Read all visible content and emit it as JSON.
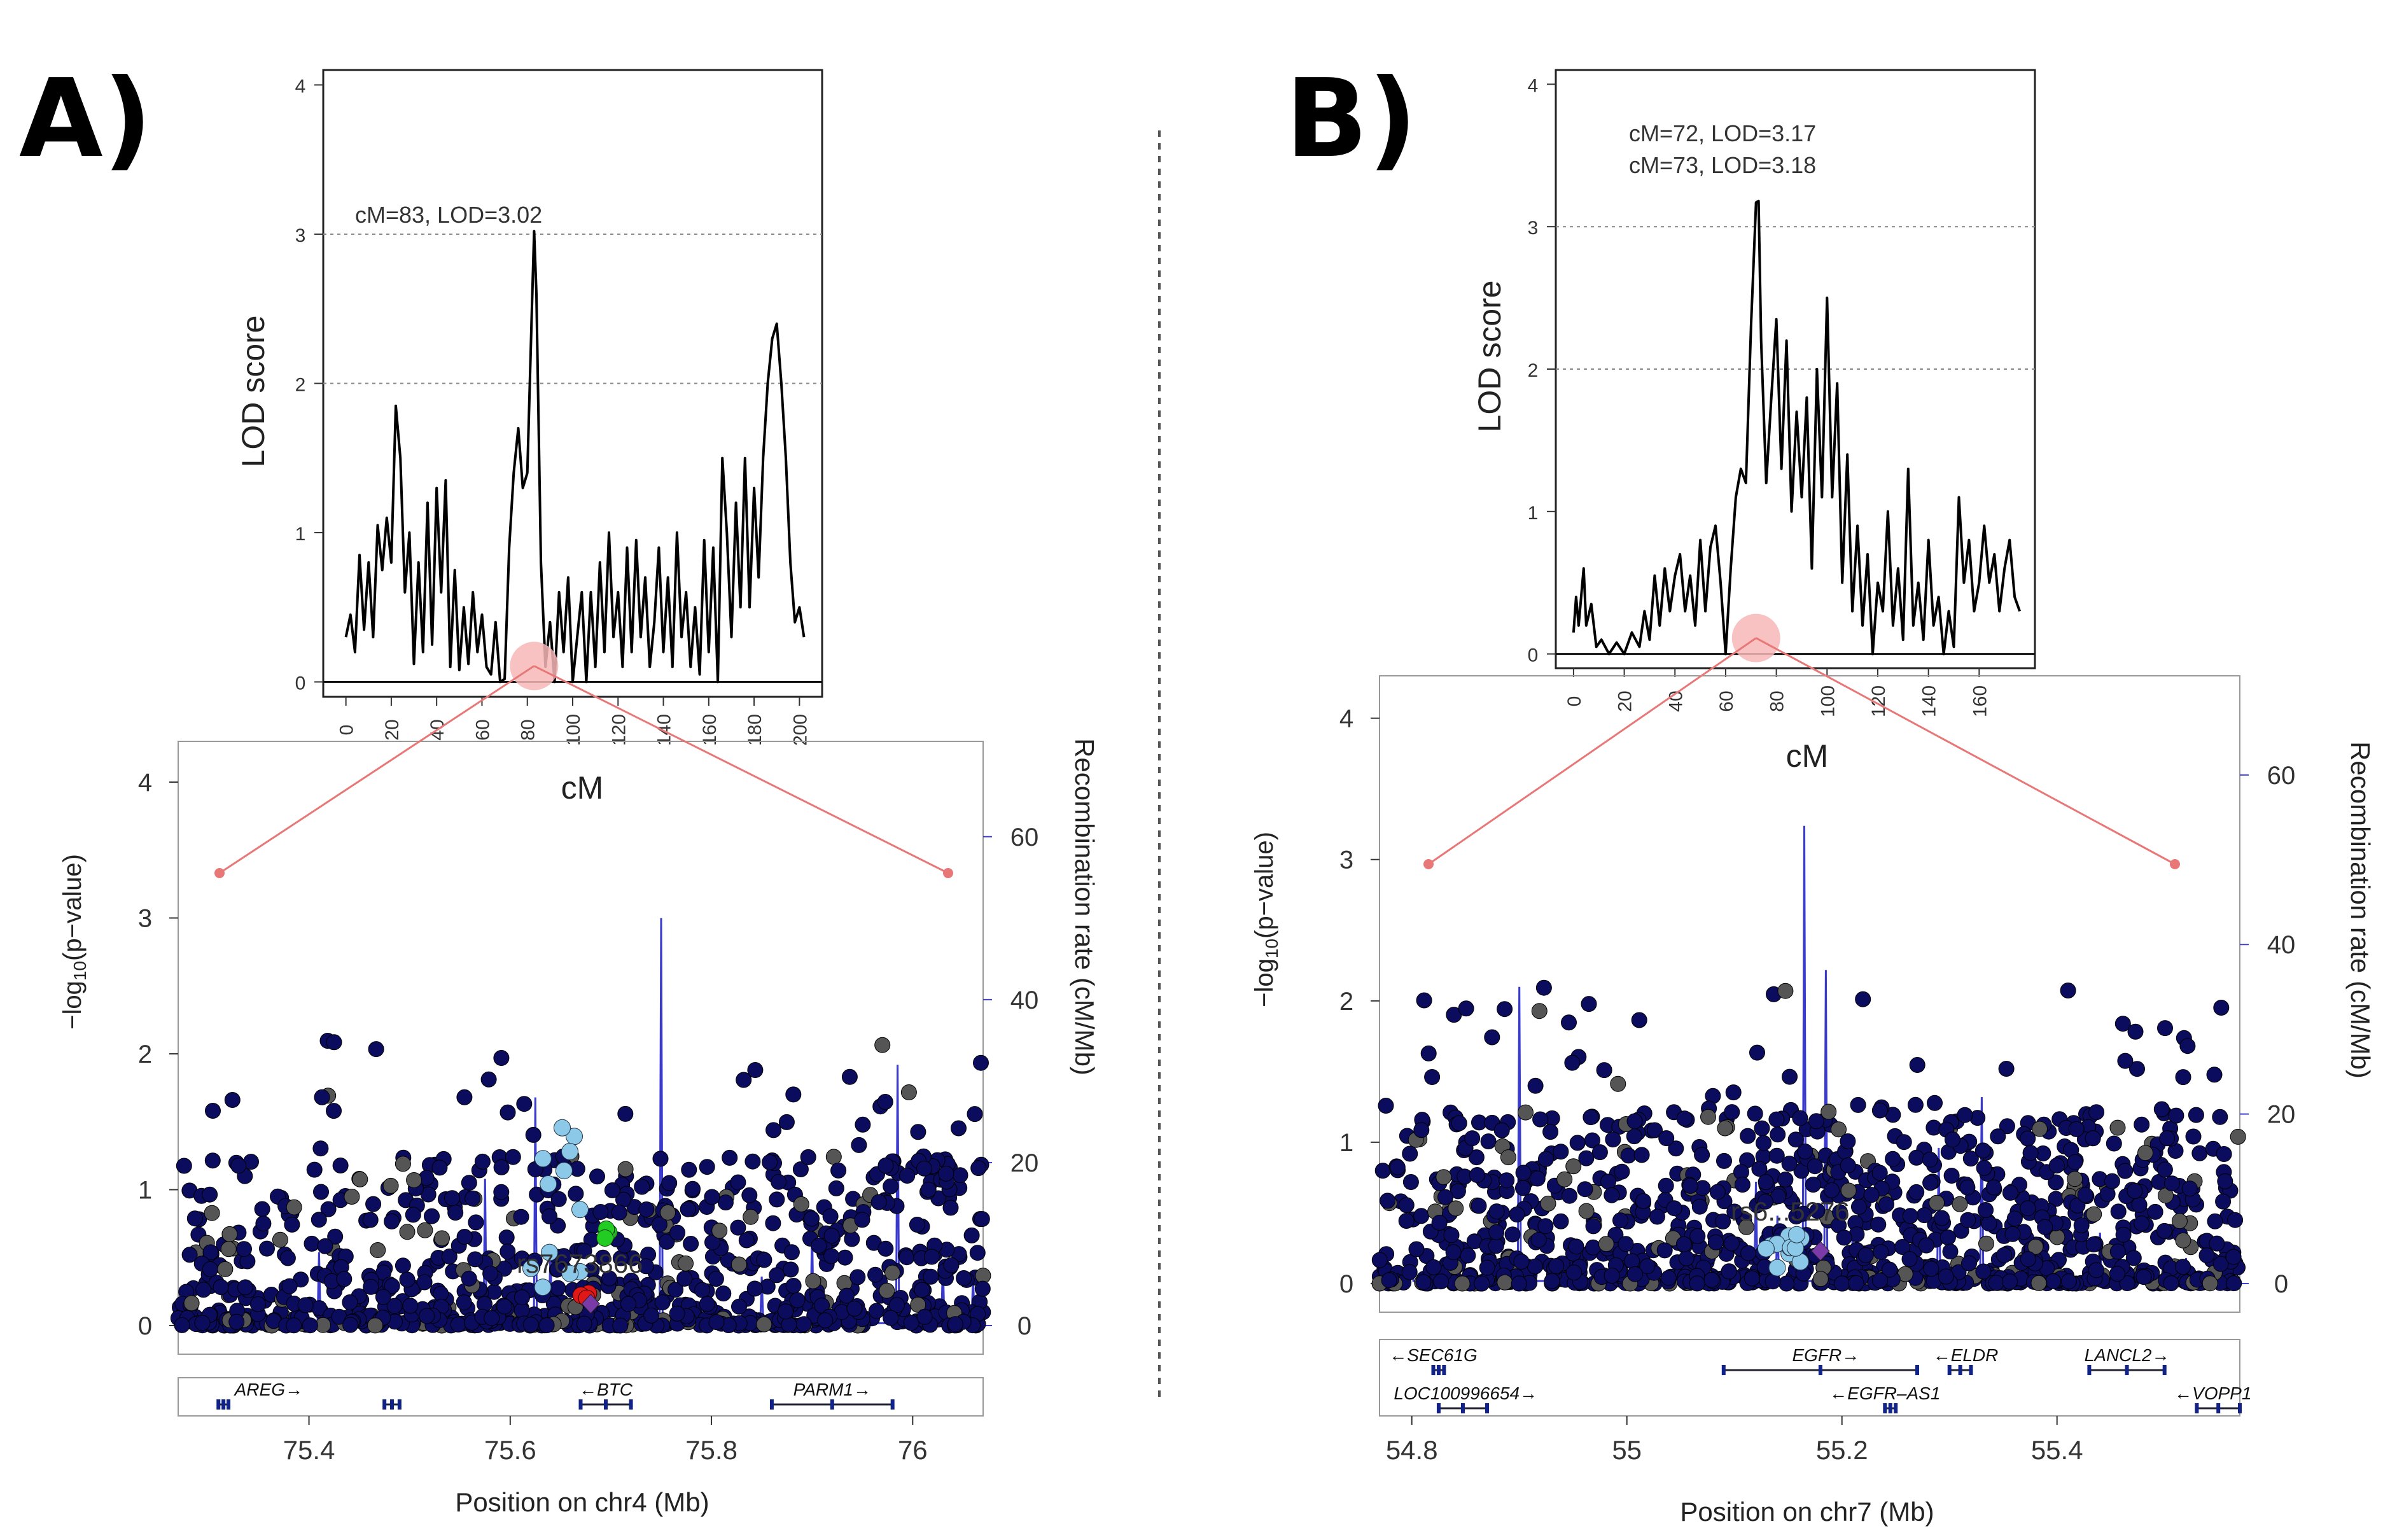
{
  "panels": [
    {
      "label": "A)",
      "lod": {
        "ylabel": "LOD score",
        "xlabel": "cM",
        "xlim": [
          -10,
          210
        ],
        "ylim": [
          -0.1,
          4.1
        ],
        "xticks": [
          0,
          20,
          40,
          60,
          80,
          100,
          120,
          140,
          160,
          180,
          200
        ],
        "yticks": [
          0,
          1,
          2,
          3,
          4
        ],
        "hlines": [
          2,
          3
        ],
        "annotations": [
          "cM=83, LOD=3.02"
        ],
        "peak_cm": 83,
        "curve": [
          [
            0,
            0.3
          ],
          [
            2,
            0.45
          ],
          [
            4,
            0.2
          ],
          [
            6,
            0.85
          ],
          [
            8,
            0.35
          ],
          [
            10,
            0.8
          ],
          [
            12,
            0.3
          ],
          [
            14,
            1.05
          ],
          [
            16,
            0.75
          ],
          [
            18,
            1.1
          ],
          [
            20,
            0.8
          ],
          [
            22,
            1.85
          ],
          [
            24,
            1.5
          ],
          [
            26,
            0.6
          ],
          [
            28,
            1.0
          ],
          [
            30,
            0.12
          ],
          [
            32,
            0.8
          ],
          [
            34,
            0.2
          ],
          [
            36,
            1.2
          ],
          [
            38,
            0.25
          ],
          [
            40,
            1.3
          ],
          [
            42,
            0.6
          ],
          [
            44,
            1.35
          ],
          [
            46,
            0.1
          ],
          [
            48,
            0.75
          ],
          [
            50,
            0.08
          ],
          [
            52,
            0.5
          ],
          [
            54,
            0.12
          ],
          [
            56,
            0.6
          ],
          [
            58,
            0.2
          ],
          [
            60,
            0.45
          ],
          [
            62,
            0.1
          ],
          [
            64,
            0.05
          ],
          [
            66,
            0.4
          ],
          [
            68,
            0.0
          ],
          [
            70,
            0.02
          ],
          [
            72,
            0.9
          ],
          [
            74,
            1.4
          ],
          [
            76,
            1.7
          ],
          [
            78,
            1.3
          ],
          [
            80,
            1.4
          ],
          [
            82,
            2.5
          ],
          [
            83,
            3.02
          ],
          [
            84,
            2.6
          ],
          [
            86,
            0.8
          ],
          [
            88,
            0.1
          ],
          [
            90,
            0.4
          ],
          [
            92,
            0.0
          ],
          [
            94,
            0.6
          ],
          [
            96,
            0.2
          ],
          [
            98,
            0.7
          ],
          [
            100,
            0.0
          ],
          [
            102,
            0.3
          ],
          [
            104,
            0.6
          ],
          [
            106,
            0.0
          ],
          [
            108,
            0.6
          ],
          [
            110,
            0.1
          ],
          [
            112,
            0.8
          ],
          [
            114,
            0.2
          ],
          [
            116,
            1.0
          ],
          [
            118,
            0.3
          ],
          [
            120,
            0.6
          ],
          [
            122,
            0.1
          ],
          [
            124,
            0.9
          ],
          [
            126,
            0.2
          ],
          [
            128,
            0.95
          ],
          [
            130,
            0.3
          ],
          [
            132,
            0.7
          ],
          [
            134,
            0.1
          ],
          [
            136,
            0.4
          ],
          [
            138,
            0.9
          ],
          [
            140,
            0.2
          ],
          [
            142,
            0.7
          ],
          [
            144,
            0.1
          ],
          [
            146,
            1.0
          ],
          [
            148,
            0.3
          ],
          [
            150,
            0.6
          ],
          [
            152,
            0.1
          ],
          [
            154,
            0.5
          ],
          [
            156,
            0.05
          ],
          [
            158,
            0.95
          ],
          [
            160,
            0.2
          ],
          [
            162,
            0.9
          ],
          [
            164,
            0.0
          ],
          [
            166,
            1.5
          ],
          [
            168,
            1.0
          ],
          [
            170,
            0.3
          ],
          [
            172,
            1.2
          ],
          [
            174,
            0.5
          ],
          [
            176,
            1.5
          ],
          [
            178,
            0.5
          ],
          [
            180,
            1.3
          ],
          [
            182,
            0.7
          ],
          [
            184,
            1.5
          ],
          [
            186,
            2.0
          ],
          [
            188,
            2.3
          ],
          [
            190,
            2.4
          ],
          [
            192,
            2.0
          ],
          [
            194,
            1.5
          ],
          [
            196,
            0.8
          ],
          [
            198,
            0.4
          ],
          [
            200,
            0.5
          ],
          [
            202,
            0.3
          ]
        ]
      },
      "manhattan": {
        "ylabel": "-log10(p-value)",
        "y2label": "Recombination rate (cM/Mb)",
        "xlabel": "Position on chr4 (Mb)",
        "xlim": [
          75.27,
          76.07
        ],
        "ylim": [
          0,
          4.3
        ],
        "y2lim": [
          0,
          71.7
        ],
        "xticks": [
          75.4,
          75.6,
          75.8,
          76
        ],
        "xticklabels": [
          "75.4",
          "75.6",
          "75.8",
          "76"
        ],
        "yticks": [
          0,
          1,
          2,
          3,
          4
        ],
        "y2ticks": [
          0,
          20,
          40,
          60
        ],
        "snp_label": "rs7673866",
        "lead_snp": [
          75.68,
          0.16
        ],
        "seed": 11,
        "density": 900,
        "recomb_spikes": [
          [
            75.3,
            1
          ],
          [
            75.41,
            9
          ],
          [
            75.52,
            2
          ],
          [
            75.575,
            18
          ],
          [
            75.625,
            28
          ],
          [
            75.64,
            10
          ],
          [
            75.75,
            50
          ],
          [
            75.79,
            2
          ],
          [
            75.85,
            6
          ],
          [
            75.9,
            12
          ],
          [
            75.985,
            32
          ],
          [
            76.03,
            8
          ],
          [
            76.06,
            6
          ]
        ],
        "genes_row1": [
          {
            "name": "AREG→",
            "start": 75.31,
            "end": 75.32,
            "label_x": 75.36
          },
          {
            "name": "←BTC",
            "start": 75.67,
            "end": 75.72,
            "label_x": 75.695
          },
          {
            "name": "PARM1→",
            "start": 75.86,
            "end": 75.98,
            "label_x": 75.92
          }
        ],
        "genes_row1_extra": [
          {
            "start": 75.475,
            "end": 75.49
          }
        ]
      }
    },
    {
      "label": "B)",
      "lod": {
        "ylabel": "LOD score",
        "xlabel": "cM",
        "xlim": [
          -7,
          182
        ],
        "ylim": [
          -0.1,
          4.1
        ],
        "xticks": [
          0,
          20,
          40,
          60,
          80,
          100,
          120,
          140,
          160
        ],
        "yticks": [
          0,
          1,
          2,
          3,
          4
        ],
        "hlines": [
          2,
          3
        ],
        "annotations": [
          "cM=72, LOD=3.17",
          "cM=73, LOD=3.18"
        ],
        "peak_cm": 72,
        "curve": [
          [
            0,
            0.15
          ],
          [
            1,
            0.4
          ],
          [
            2,
            0.2
          ],
          [
            4,
            0.6
          ],
          [
            5,
            0.2
          ],
          [
            7,
            0.35
          ],
          [
            9,
            0.05
          ],
          [
            11,
            0.1
          ],
          [
            14,
            0.0
          ],
          [
            17,
            0.08
          ],
          [
            20,
            0.0
          ],
          [
            23,
            0.15
          ],
          [
            26,
            0.05
          ],
          [
            28,
            0.3
          ],
          [
            30,
            0.1
          ],
          [
            32,
            0.55
          ],
          [
            34,
            0.2
          ],
          [
            36,
            0.6
          ],
          [
            38,
            0.3
          ],
          [
            40,
            0.55
          ],
          [
            42,
            0.7
          ],
          [
            44,
            0.3
          ],
          [
            46,
            0.55
          ],
          [
            48,
            0.2
          ],
          [
            50,
            0.8
          ],
          [
            52,
            0.3
          ],
          [
            54,
            0.75
          ],
          [
            56,
            0.9
          ],
          [
            58,
            0.5
          ],
          [
            60,
            0.0
          ],
          [
            62,
            0.6
          ],
          [
            64,
            1.1
          ],
          [
            66,
            1.3
          ],
          [
            68,
            1.2
          ],
          [
            70,
            2.3
          ],
          [
            72,
            3.17
          ],
          [
            73,
            3.18
          ],
          [
            74,
            2.2
          ],
          [
            76,
            1.2
          ],
          [
            78,
            1.8
          ],
          [
            80,
            2.35
          ],
          [
            82,
            1.3
          ],
          [
            84,
            2.2
          ],
          [
            86,
            1.0
          ],
          [
            88,
            1.7
          ],
          [
            90,
            1.1
          ],
          [
            92,
            1.8
          ],
          [
            94,
            0.6
          ],
          [
            96,
            2.0
          ],
          [
            98,
            1.1
          ],
          [
            100,
            2.5
          ],
          [
            102,
            1.1
          ],
          [
            104,
            1.9
          ],
          [
            106,
            0.5
          ],
          [
            108,
            1.4
          ],
          [
            110,
            0.3
          ],
          [
            112,
            0.9
          ],
          [
            114,
            0.2
          ],
          [
            116,
            0.7
          ],
          [
            118,
            0.0
          ],
          [
            120,
            0.5
          ],
          [
            122,
            0.3
          ],
          [
            124,
            1.0
          ],
          [
            126,
            0.2
          ],
          [
            128,
            0.6
          ],
          [
            130,
            0.1
          ],
          [
            132,
            1.3
          ],
          [
            134,
            0.2
          ],
          [
            136,
            0.5
          ],
          [
            138,
            0.1
          ],
          [
            140,
            0.8
          ],
          [
            142,
            0.2
          ],
          [
            144,
            0.4
          ],
          [
            146,
            0.0
          ],
          [
            148,
            0.3
          ],
          [
            150,
            0.05
          ],
          [
            152,
            1.1
          ],
          [
            154,
            0.5
          ],
          [
            156,
            0.8
          ],
          [
            158,
            0.3
          ],
          [
            160,
            0.5
          ],
          [
            162,
            0.9
          ],
          [
            164,
            0.5
          ],
          [
            166,
            0.7
          ],
          [
            168,
            0.3
          ],
          [
            170,
            0.6
          ],
          [
            172,
            0.8
          ],
          [
            174,
            0.4
          ],
          [
            176,
            0.3
          ]
        ]
      },
      "manhattan": {
        "ylabel": "-log10(p-value)",
        "y2label": "Recombination rate (cM/Mb)",
        "xlabel": "Position on chr7 (Mb)",
        "xlim": [
          54.77,
          55.57
        ],
        "ylim": [
          0,
          4.3
        ],
        "y2lim": [
          0,
          71.7
        ],
        "xticks": [
          54.8,
          55,
          55.2,
          55.4
        ],
        "xticklabels": [
          "54.8",
          "55",
          "55.2",
          "55.4"
        ],
        "yticks": [
          0,
          1,
          2,
          3,
          4
        ],
        "y2ticks": [
          0,
          20,
          40,
          60
        ],
        "snp_label": "rs6... 5276...",
        "snp_label_full": "rs6...5276",
        "lead_snp": [
          55.18,
          0.23
        ],
        "seed": 29,
        "density": 1100,
        "recomb_spikes": [
          [
            54.8,
            2
          ],
          [
            54.9,
            35
          ],
          [
            55.02,
            4
          ],
          [
            55.12,
            12
          ],
          [
            55.14,
            8
          ],
          [
            55.165,
            54
          ],
          [
            55.185,
            37
          ],
          [
            55.21,
            6
          ],
          [
            55.29,
            16
          ],
          [
            55.33,
            22
          ],
          [
            55.44,
            6
          ],
          [
            55.52,
            3
          ],
          [
            55.56,
            2
          ]
        ],
        "genes_row1": [
          {
            "name": "←SEC61G",
            "start": 54.82,
            "end": 54.83,
            "label_x": 54.82
          },
          {
            "name": "EGFR→",
            "start": 55.09,
            "end": 55.27,
            "label_x": 55.185
          },
          {
            "name": "←ELDR",
            "start": 55.3,
            "end": 55.32,
            "label_x": 55.315
          },
          {
            "name": "LANCL2→",
            "start": 55.43,
            "end": 55.5,
            "label_x": 55.465
          }
        ],
        "genes_row2": [
          {
            "name": "LOC100996654→",
            "start": 54.825,
            "end": 54.87,
            "label_x": 54.85
          },
          {
            "name": "←EGFR–AS1",
            "start": 55.24,
            "end": 55.25,
            "label_x": 55.24
          },
          {
            "name": "←VOPP1",
            "start": 55.53,
            "end": 55.57,
            "label_x": 55.545
          }
        ]
      }
    }
  ],
  "colors": {
    "points": "#0c0c5e",
    "recomb": "#3a3acc",
    "axis_blue": "#4040d0",
    "zoom": "#e87878",
    "zoom_fill": "#f7b7b7",
    "ld_high": "#e01818",
    "ld_green": "#22cc22",
    "ld_light": "#8cc8e8",
    "lead": "#7a3aa8"
  }
}
